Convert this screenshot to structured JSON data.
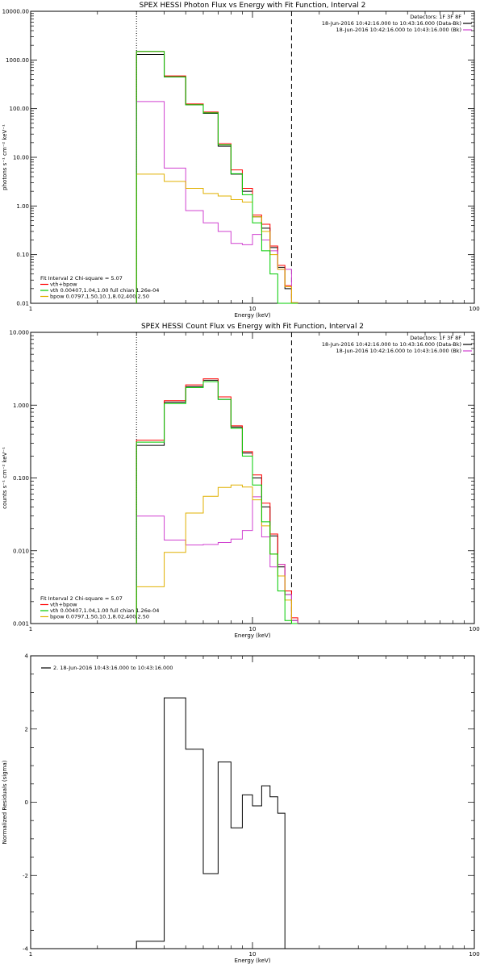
{
  "colors": {
    "data": "#000000",
    "model": "#ff0000",
    "background": "#d040d0",
    "vth": "#00cc00",
    "bpow": "#e0b000"
  },
  "chart_data": [
    {
      "type": "line",
      "title": "SPEX HESSI Photon Flux vs Energy with Fit Function, Interval 2",
      "xlabel": "Energy (keV)",
      "ylabel": "photons s⁻¹ cm⁻² keV⁻¹",
      "xlim": [
        1,
        100
      ],
      "ylim": [
        0.01,
        10000
      ],
      "xscale": "log",
      "yscale": "log",
      "xticks": [
        "1",
        "10",
        "100"
      ],
      "yticks": [
        "0.01",
        "0.10",
        "1.00",
        "10.00",
        "100.00",
        "1000.00",
        "10000.00"
      ],
      "vlines": [
        3,
        15
      ],
      "legend_tr": [
        "Detectors: 1F 3F 8F",
        "18-Jun-2016 10:42:16.000 to 10:43:16.000 (Data-Bk)",
        "18-Jun-2016 10:42:16.000 to 10:43:16.000 (Bk)"
      ],
      "legend_bl": [
        "Fit Interval 2   Chi-square = 5.07",
        "vth+bpow",
        "vth 0.00407,1.04,1.00  full chian 1.26e-04",
        "bpow 0.0797,1.50,10.1,8.02,400,2.50"
      ],
      "bin_edges": [
        3,
        4,
        5,
        6,
        7,
        8,
        9,
        10,
        11,
        12,
        13,
        14,
        15,
        16,
        17,
        18
      ],
      "series": [
        {
          "name": "Data-Bk",
          "color": "#000000",
          "values": [
            1300,
            450,
            120,
            80,
            17,
            4.5,
            2.0,
            0.6,
            0.35,
            0.14,
            0.055,
            0.02,
            0.009,
            null,
            null
          ]
        },
        {
          "name": "vth+bpow",
          "color": "#ff0000",
          "values": [
            1500,
            470,
            125,
            85,
            19,
            5.5,
            2.3,
            0.65,
            0.42,
            0.15,
            0.06,
            0.023,
            0.0103,
            null,
            null
          ]
        },
        {
          "name": "Bk",
          "color": "#d040d0",
          "values": [
            140,
            6,
            0.8,
            0.45,
            0.3,
            0.17,
            0.16,
            0.26,
            0.2,
            0.12,
            0.05,
            0.05,
            0.009,
            null,
            null
          ]
        },
        {
          "name": "vth",
          "color": "#00cc00",
          "values": [
            1500,
            450,
            120,
            82,
            18,
            4.6,
            1.7,
            0.45,
            0.12,
            0.04,
            0.009,
            0.009,
            0.009,
            null,
            null
          ]
        },
        {
          "name": "bpow",
          "color": "#e0b000",
          "values": [
            4.5,
            3.2,
            2.3,
            1.8,
            1.6,
            1.35,
            1.2,
            0.6,
            0.3,
            0.1,
            0.05,
            0.022,
            0.0102,
            null,
            null
          ]
        }
      ]
    },
    {
      "type": "line",
      "title": "SPEX HESSI Count Flux vs Energy with Fit Function, Interval 2",
      "xlabel": "Energy (keV)",
      "ylabel": "counts s⁻¹ cm⁻² keV⁻¹",
      "xlim": [
        1,
        100
      ],
      "ylim": [
        0.001,
        10
      ],
      "xscale": "log",
      "yscale": "log",
      "xticks": [
        "1",
        "10",
        "100"
      ],
      "yticks": [
        "0.001",
        "0.010",
        "0.100",
        "1.000",
        "10.000"
      ],
      "vlines": [
        3,
        15
      ],
      "legend_tr": [
        "Detectors: 1F 3F 8F",
        "18-Jun-2016 10:42:16.000 to 10:43:16.000 (Data-Bk)",
        "18-Jun-2016 10:42:16.000 to 10:43:16.000 (Bk)"
      ],
      "legend_bl": [
        "Fit Interval 2   Chi-square = 5.07",
        "vth+bpow",
        "vth 0.00407,1.04,1.00  full chian 1.26e-04",
        "bpow 0.0797,1.50,10.1,8.02,400,2.50"
      ],
      "bin_edges": [
        3,
        4,
        5,
        6,
        7,
        8,
        9,
        10,
        11,
        12,
        13,
        14,
        15,
        16,
        17,
        18
      ],
      "series": [
        {
          "name": "Data-Bk",
          "color": "#000000",
          "values": [
            0.28,
            1.1,
            1.8,
            2.2,
            1.2,
            0.5,
            0.22,
            0.1,
            0.04,
            0.016,
            0.006,
            0.0025,
            0.0011,
            null,
            null
          ]
        },
        {
          "name": "vth+bpow",
          "color": "#ff0000",
          "values": [
            0.33,
            1.15,
            1.9,
            2.3,
            1.3,
            0.52,
            0.23,
            0.11,
            0.045,
            0.017,
            0.0065,
            0.0028,
            0.0012,
            null,
            null
          ]
        },
        {
          "name": "Bk",
          "color": "#d040d0",
          "values": [
            0.03,
            0.014,
            0.012,
            0.0122,
            0.013,
            0.0145,
            0.019,
            0.055,
            0.0155,
            0.006,
            0.0065,
            0.0025,
            0.0011,
            null,
            null
          ]
        },
        {
          "name": "vth",
          "color": "#00cc00",
          "values": [
            0.31,
            1.05,
            1.75,
            2.1,
            1.2,
            0.48,
            0.2,
            0.08,
            0.025,
            0.009,
            0.0028,
            0.0011,
            0.0008,
            null,
            null
          ]
        },
        {
          "name": "bpow",
          "color": "#e0b000",
          "values": [
            0.0032,
            0.0095,
            0.033,
            0.056,
            0.074,
            0.08,
            0.075,
            0.05,
            0.022,
            0.009,
            0.0045,
            0.0021,
            0.001,
            null,
            null
          ]
        }
      ]
    },
    {
      "type": "line",
      "title": "",
      "xlabel": "Energy (keV)",
      "ylabel": "Normalized Residuals (sigma)",
      "xlim": [
        1,
        100
      ],
      "ylim": [
        -4,
        4
      ],
      "xscale": "log",
      "yscale": "linear",
      "xticks": [
        "1",
        "10",
        "100"
      ],
      "yticks": [
        "-4",
        "-2",
        "0",
        "2",
        "4"
      ],
      "legend_tl": [
        "2. 18-Jun-2016 10:43:16.000 to 10:43:16.000"
      ],
      "bin_edges": [
        3,
        4,
        5,
        6,
        7,
        8,
        9,
        10,
        11,
        12,
        13,
        14,
        15
      ],
      "series": [
        {
          "name": "2. 18-Jun-2016 10:43:16.000 to 10:43:16.000",
          "color": "#000000",
          "values": [
            -3.8,
            2.85,
            1.45,
            -1.95,
            1.1,
            -0.7,
            0.2,
            -0.1,
            0.45,
            0.15,
            -0.3,
            null
          ]
        }
      ]
    }
  ]
}
